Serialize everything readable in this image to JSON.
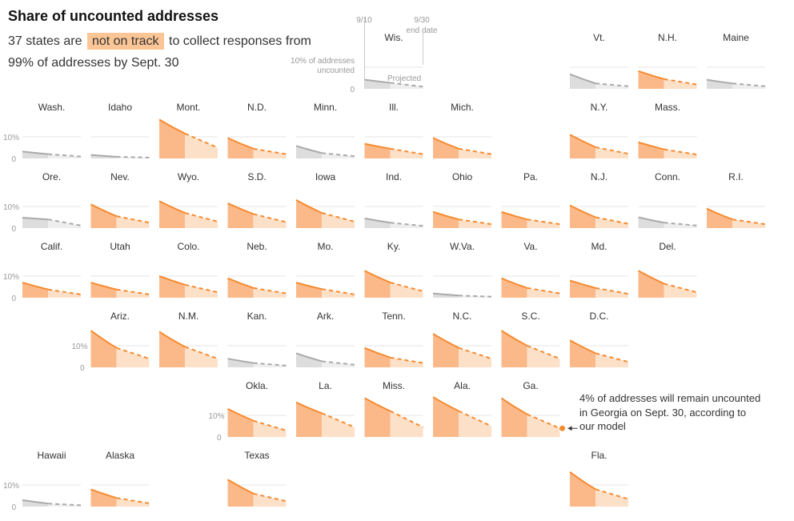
{
  "header": {
    "title": "Share of uncounted addresses",
    "subtitle_pre": "37 states are",
    "subtitle_highlight": "not on track",
    "subtitle_post": "to collect responses from 99% of addresses by Sept. 30"
  },
  "colors": {
    "on_track_fill": "#dddddd",
    "on_track_line": "#aaaaaa",
    "off_track_fill": "#fbb98a",
    "off_track_projected_fill": "#fde0c8",
    "off_track_line": "#f68b30",
    "gridline": "#e6e6e6"
  },
  "legend": {
    "date_start": "9/10",
    "date_end": "9/30",
    "date_end_caption": "end date",
    "y_caption": "10% of addresses uncounted",
    "y_zero": "0",
    "projected_label": "Projected"
  },
  "axis": {
    "tick_10": "10%",
    "tick_0": "0"
  },
  "annotation": "4% of addresses will remain uncounted in Georgia on Sept. 30, according to our model",
  "chart_data": {
    "type": "area",
    "x": [
      "9/10",
      "9/30"
    ],
    "ylim": [
      0,
      20
    ],
    "states": [
      {
        "name": "Wis.",
        "row": 0,
        "col": 5,
        "not_on_track": false,
        "start": 4.2,
        "mid": 2.8,
        "end": 1.0
      },
      {
        "name": "Vt.",
        "row": 0,
        "col": 8,
        "not_on_track": false,
        "start": 6.8,
        "mid": 2.5,
        "end": 1.2
      },
      {
        "name": "N.H.",
        "row": 0,
        "col": 9,
        "not_on_track": true,
        "start": 8.2,
        "mid": 4.5,
        "end": 2.0
      },
      {
        "name": "Maine",
        "row": 0,
        "col": 10,
        "not_on_track": false,
        "start": 4.2,
        "mid": 2.5,
        "end": 1.2
      },
      {
        "name": "Wash.",
        "row": 1,
        "col": 0,
        "not_on_track": false,
        "start": 3.2,
        "mid": 2.0,
        "end": 0.9
      },
      {
        "name": "Idaho",
        "row": 1,
        "col": 1,
        "not_on_track": false,
        "start": 1.6,
        "mid": 0.8,
        "end": 0.4
      },
      {
        "name": "Mont.",
        "row": 1,
        "col": 2,
        "not_on_track": true,
        "start": 18.0,
        "mid": 11.5,
        "end": 5.0
      },
      {
        "name": "N.D.",
        "row": 1,
        "col": 3,
        "not_on_track": true,
        "start": 9.5,
        "mid": 4.5,
        "end": 2.0
      },
      {
        "name": "Minn.",
        "row": 1,
        "col": 4,
        "not_on_track": false,
        "start": 5.8,
        "mid": 2.5,
        "end": 1.0
      },
      {
        "name": "Ill.",
        "row": 1,
        "col": 5,
        "not_on_track": true,
        "start": 6.8,
        "mid": 4.5,
        "end": 2.0
      },
      {
        "name": "Mich.",
        "row": 1,
        "col": 6,
        "not_on_track": true,
        "start": 9.5,
        "mid": 4.5,
        "end": 2.0
      },
      {
        "name": "N.Y.",
        "row": 1,
        "col": 8,
        "not_on_track": true,
        "start": 11.0,
        "mid": 5.2,
        "end": 2.2
      },
      {
        "name": "Mass.",
        "row": 1,
        "col": 9,
        "not_on_track": true,
        "start": 7.5,
        "mid": 4.2,
        "end": 1.8
      },
      {
        "name": "Ore.",
        "row": 2,
        "col": 0,
        "not_on_track": false,
        "start": 4.8,
        "mid": 4.0,
        "end": 1.2
      },
      {
        "name": "Nev.",
        "row": 2,
        "col": 1,
        "not_on_track": true,
        "start": 11.0,
        "mid": 5.5,
        "end": 2.5
      },
      {
        "name": "Wyo.",
        "row": 2,
        "col": 2,
        "not_on_track": true,
        "start": 12.5,
        "mid": 7.0,
        "end": 3.0
      },
      {
        "name": "S.D.",
        "row": 2,
        "col": 3,
        "not_on_track": true,
        "start": 11.5,
        "mid": 6.5,
        "end": 2.8
      },
      {
        "name": "Iowa",
        "row": 2,
        "col": 4,
        "not_on_track": true,
        "start": 13.0,
        "mid": 7.0,
        "end": 3.0
      },
      {
        "name": "Ind.",
        "row": 2,
        "col": 5,
        "not_on_track": false,
        "start": 4.5,
        "mid": 2.5,
        "end": 1.0
      },
      {
        "name": "Ohio",
        "row": 2,
        "col": 6,
        "not_on_track": true,
        "start": 7.5,
        "mid": 4.0,
        "end": 1.8
      },
      {
        "name": "Pa.",
        "row": 2,
        "col": 7,
        "not_on_track": true,
        "start": 7.5,
        "mid": 4.0,
        "end": 1.8
      },
      {
        "name": "N.J.",
        "row": 2,
        "col": 8,
        "not_on_track": true,
        "start": 10.5,
        "mid": 5.0,
        "end": 2.0
      },
      {
        "name": "Conn.",
        "row": 2,
        "col": 9,
        "not_on_track": false,
        "start": 5.0,
        "mid": 2.5,
        "end": 1.2
      },
      {
        "name": "R.I.",
        "row": 2,
        "col": 10,
        "not_on_track": true,
        "start": 9.0,
        "mid": 4.0,
        "end": 1.8
      },
      {
        "name": "Calif.",
        "row": 3,
        "col": 0,
        "not_on_track": true,
        "start": 7.0,
        "mid": 3.8,
        "end": 1.5
      },
      {
        "name": "Utah",
        "row": 3,
        "col": 1,
        "not_on_track": true,
        "start": 7.0,
        "mid": 3.8,
        "end": 1.5
      },
      {
        "name": "Colo.",
        "row": 3,
        "col": 2,
        "not_on_track": true,
        "start": 10.0,
        "mid": 6.0,
        "end": 2.5
      },
      {
        "name": "Neb.",
        "row": 3,
        "col": 3,
        "not_on_track": true,
        "start": 9.0,
        "mid": 4.5,
        "end": 2.0
      },
      {
        "name": "Mo.",
        "row": 3,
        "col": 4,
        "not_on_track": true,
        "start": 7.0,
        "mid": 4.0,
        "end": 1.5
      },
      {
        "name": "Ky.",
        "row": 3,
        "col": 5,
        "not_on_track": true,
        "start": 12.5,
        "mid": 7.0,
        "end": 3.0
      },
      {
        "name": "W.Va.",
        "row": 3,
        "col": 6,
        "not_on_track": false,
        "start": 2.0,
        "mid": 1.0,
        "end": 0.5
      },
      {
        "name": "Va.",
        "row": 3,
        "col": 7,
        "not_on_track": true,
        "start": 9.0,
        "mid": 4.5,
        "end": 2.0
      },
      {
        "name": "Md.",
        "row": 3,
        "col": 8,
        "not_on_track": true,
        "start": 8.0,
        "mid": 4.5,
        "end": 1.8
      },
      {
        "name": "Del.",
        "row": 3,
        "col": 9,
        "not_on_track": true,
        "start": 12.5,
        "mid": 6.5,
        "end": 2.5
      },
      {
        "name": "Ariz.",
        "row": 4,
        "col": 1,
        "not_on_track": true,
        "start": 17.0,
        "mid": 9.0,
        "end": 4.0
      },
      {
        "name": "N.M.",
        "row": 4,
        "col": 2,
        "not_on_track": true,
        "start": 16.5,
        "mid": 9.5,
        "end": 4.0
      },
      {
        "name": "Kan.",
        "row": 4,
        "col": 3,
        "not_on_track": false,
        "start": 4.0,
        "mid": 2.0,
        "end": 0.8
      },
      {
        "name": "Ark.",
        "row": 4,
        "col": 4,
        "not_on_track": false,
        "start": 6.5,
        "mid": 2.8,
        "end": 1.2
      },
      {
        "name": "Tenn.",
        "row": 4,
        "col": 5,
        "not_on_track": true,
        "start": 9.0,
        "mid": 4.5,
        "end": 2.0
      },
      {
        "name": "N.C.",
        "row": 4,
        "col": 6,
        "not_on_track": true,
        "start": 15.5,
        "mid": 9.0,
        "end": 4.0
      },
      {
        "name": "S.C.",
        "row": 4,
        "col": 7,
        "not_on_track": true,
        "start": 17.0,
        "mid": 10.0,
        "end": 4.0
      },
      {
        "name": "D.C.",
        "row": 4,
        "col": 8,
        "not_on_track": true,
        "start": 12.5,
        "mid": 6.5,
        "end": 2.5
      },
      {
        "name": "Okla.",
        "row": 5,
        "col": 3,
        "not_on_track": true,
        "start": 13.0,
        "mid": 7.5,
        "end": 3.0
      },
      {
        "name": "La.",
        "row": 5,
        "col": 4,
        "not_on_track": true,
        "start": 16.0,
        "mid": 11.0,
        "end": 4.5
      },
      {
        "name": "Miss.",
        "row": 5,
        "col": 5,
        "not_on_track": true,
        "start": 18.0,
        "mid": 12.0,
        "end": 4.5
      },
      {
        "name": "Ala.",
        "row": 5,
        "col": 6,
        "not_on_track": true,
        "start": 18.5,
        "mid": 12.0,
        "end": 5.0
      },
      {
        "name": "Ga.",
        "row": 5,
        "col": 7,
        "not_on_track": true,
        "start": 18.0,
        "mid": 10.5,
        "end": 4.0
      },
      {
        "name": "Hawaii",
        "row": 6,
        "col": 0,
        "not_on_track": false,
        "start": 3.0,
        "mid": 1.4,
        "end": 0.6
      },
      {
        "name": "Alaska",
        "row": 6,
        "col": 1,
        "not_on_track": true,
        "start": 8.0,
        "mid": 4.0,
        "end": 1.5
      },
      {
        "name": "Texas",
        "row": 6,
        "col": 3,
        "not_on_track": true,
        "start": 12.5,
        "mid": 6.0,
        "end": 2.5
      },
      {
        "name": "Fla.",
        "row": 6,
        "col": 8,
        "not_on_track": true,
        "start": 16.0,
        "mid": 8.0,
        "end": 3.5
      }
    ],
    "axis_rows": [
      {
        "row": 1,
        "col": 0
      },
      {
        "row": 2,
        "col": 0
      },
      {
        "row": 3,
        "col": 0
      },
      {
        "row": 4,
        "col": 1
      },
      {
        "row": 5,
        "col": 3
      },
      {
        "row": 6,
        "col": 0
      }
    ],
    "highlight_state": "Ga."
  }
}
